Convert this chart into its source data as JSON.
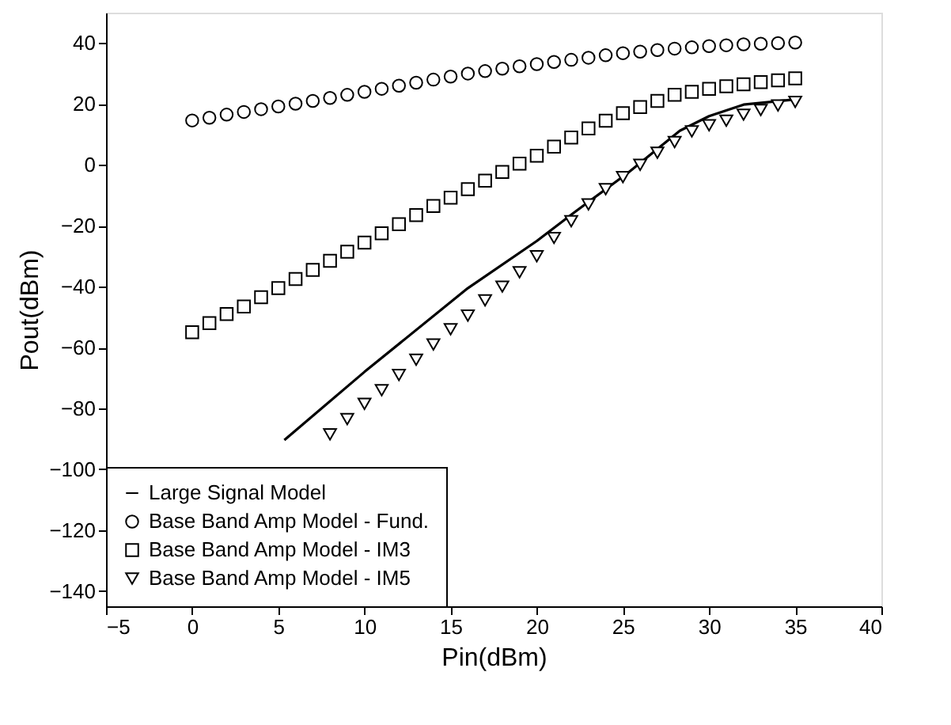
{
  "chart_data": {
    "type": "scatter",
    "xlabel": "Pin(dBm)",
    "ylabel": "Pout(dBm)",
    "xlim": [
      -5,
      40
    ],
    "xticks": [
      -5,
      0,
      5,
      10,
      15,
      20,
      25,
      30,
      35,
      40
    ],
    "ylim": [
      -145,
      50
    ],
    "yticks": [
      -140,
      -120,
      -100,
      -80,
      -60,
      -40,
      -20,
      0,
      20,
      40
    ],
    "grid": false,
    "legend": "bottom left",
    "series": [
      {
        "name": "Large Signal Model",
        "type": "line",
        "marker": "none",
        "line_style": "solid",
        "color": "#000000",
        "x": [
          5.35,
          10,
          16,
          20,
          22.2,
          25.3,
          28.3,
          30,
          32,
          35
        ],
        "values": [
          -90.4,
          -68,
          -40.5,
          -25,
          -15.5,
          -2.6,
          11.2,
          16,
          19.8,
          21.5
        ]
      },
      {
        "name": "Base Band Amp Model - Fund.",
        "marker": "circle",
        "color": "#000000",
        "x": [
          0,
          1,
          2,
          3,
          4,
          5,
          6,
          7,
          8,
          9,
          10,
          11,
          12,
          13,
          14,
          15,
          16,
          17,
          18,
          19,
          20,
          21,
          22,
          23,
          24,
          25,
          26,
          27,
          28,
          29,
          30,
          31,
          32,
          33,
          34,
          35
        ],
        "values": [
          14.6,
          15.5,
          16.5,
          17.4,
          18.3,
          19.2,
          20.1,
          21,
          22,
          23,
          24,
          25,
          26,
          27,
          28,
          29,
          30,
          30.8,
          31.6,
          32.4,
          33.1,
          33.8,
          34.5,
          35.2,
          36,
          36.7,
          37.2,
          37.7,
          38.2,
          38.6,
          39,
          39.3,
          39.6,
          39.8,
          40,
          40.2
        ]
      },
      {
        "name": "Base Band Amp Model - IM3",
        "marker": "square",
        "color": "#000000",
        "x": [
          0,
          1,
          2,
          3,
          4,
          5,
          6,
          7,
          8,
          9,
          10,
          11,
          12,
          13,
          14,
          15,
          16,
          17,
          18,
          19,
          20,
          21,
          22,
          23,
          24,
          25,
          26,
          27,
          28,
          29,
          30,
          31,
          32,
          33,
          34,
          35
        ],
        "values": [
          -55,
          -52,
          -49,
          -46.5,
          -43.5,
          -40.5,
          -37.5,
          -34.5,
          -31.5,
          -28.5,
          -25.5,
          -22.5,
          -19.5,
          -16.5,
          -13.5,
          -10.8,
          -8,
          -5.2,
          -2.3,
          0.4,
          3,
          6,
          9,
          12,
          14.5,
          17,
          19,
          21,
          23,
          24,
          25,
          25.8,
          26.5,
          27.2,
          27.8,
          28.4
        ]
      },
      {
        "name": "Base Band Amp Model - IM5",
        "marker": "triangle",
        "color": "#000000",
        "x": [
          8,
          9,
          10,
          11,
          12,
          13,
          14,
          15,
          16,
          17,
          18,
          19,
          20,
          21,
          22,
          23,
          24,
          25,
          26,
          27,
          28,
          29,
          30,
          31,
          32,
          33,
          34,
          35
        ],
        "values": [
          -88.5,
          -83.5,
          -78.5,
          -74,
          -69,
          -64,
          -59,
          -54,
          -49.5,
          -44.5,
          -40,
          -35.3,
          -30,
          -24,
          -18.5,
          -13,
          -8,
          -4,
          0,
          4,
          7.5,
          11,
          13,
          14.5,
          16.5,
          18,
          19.5,
          20.7
        ]
      }
    ]
  }
}
